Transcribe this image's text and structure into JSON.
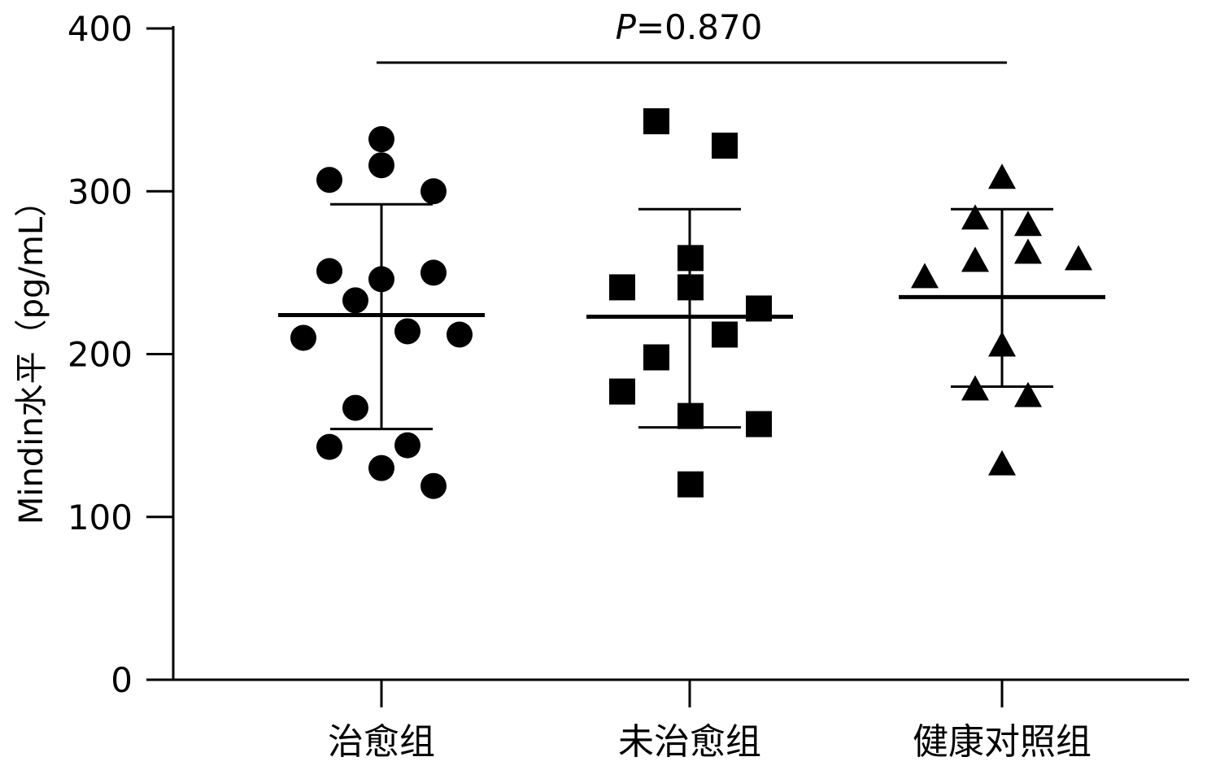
{
  "chart_data": {
    "type": "scatter",
    "subtype": "dot-plot with mean and SD bars",
    "ylabel": "Mindin水平（pg/mL）",
    "ylim": [
      0,
      400
    ],
    "yticks": [
      "0",
      "100",
      "200",
      "300",
      "400"
    ],
    "categories": [
      "治愈组",
      "未治愈组",
      "健康对照组"
    ],
    "annotation": {
      "label_italic": "P",
      "label_rest": "=0.870"
    },
    "grid": false,
    "marker_color": "#000000",
    "series": [
      {
        "category": "治愈组",
        "marker": "circle",
        "values": [
          332,
          316,
          307,
          300,
          251,
          246,
          250,
          233,
          210,
          214,
          212,
          167,
          143,
          144,
          130,
          119
        ],
        "mean": 224,
        "sd_upper": 292,
        "sd_lower": 154
      },
      {
        "category": "未治愈组",
        "marker": "square",
        "values": [
          343,
          328,
          259,
          241,
          241,
          228,
          212,
          198,
          177,
          162,
          157,
          120
        ],
        "mean": 223,
        "sd_upper": 289,
        "sd_lower": 155
      },
      {
        "category": "健康对照组",
        "marker": "triangle",
        "values": [
          308,
          283,
          279,
          257,
          262,
          258,
          247,
          205,
          178,
          174,
          132
        ],
        "mean": 235,
        "sd_upper": 289,
        "sd_lower": 180
      }
    ]
  }
}
